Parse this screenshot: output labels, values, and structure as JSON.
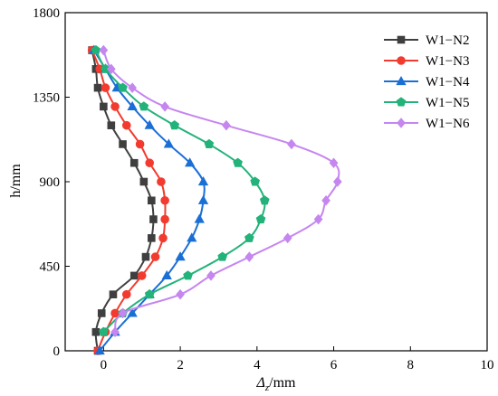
{
  "chart_data": {
    "type": "line",
    "title": "",
    "xlabel_main": "Δ",
    "xlabel_sub": "z",
    "xlabel_unit": "/mm",
    "ylabel": "h/mm",
    "xlim": [
      -1,
      10
    ],
    "ylim": [
      0,
      1800
    ],
    "xticks": [
      "0",
      "2",
      "4",
      "6",
      "8",
      "10"
    ],
    "yticks": [
      "0",
      "450",
      "900",
      "1350",
      "1800"
    ],
    "legend_position": "top-right",
    "series": [
      {
        "name": "W1−N2",
        "color": "#3f3f3f",
        "marker": "square",
        "points": [
          [
            -0.15,
            0
          ],
          [
            -0.2,
            100
          ],
          [
            -0.05,
            200
          ],
          [
            0.25,
            300
          ],
          [
            0.8,
            400
          ],
          [
            1.1,
            500
          ],
          [
            1.25,
            600
          ],
          [
            1.3,
            700
          ],
          [
            1.25,
            800
          ],
          [
            1.05,
            900
          ],
          [
            0.8,
            1000
          ],
          [
            0.5,
            1100
          ],
          [
            0.2,
            1200
          ],
          [
            0.0,
            1300
          ],
          [
            -0.15,
            1400
          ],
          [
            -0.2,
            1500
          ],
          [
            -0.3,
            1600
          ]
        ]
      },
      {
        "name": "W1−N3",
        "color": "#f23a2e",
        "marker": "circle",
        "points": [
          [
            -0.15,
            0
          ],
          [
            0.05,
            100
          ],
          [
            0.3,
            200
          ],
          [
            0.6,
            300
          ],
          [
            1.0,
            400
          ],
          [
            1.35,
            500
          ],
          [
            1.55,
            600
          ],
          [
            1.6,
            700
          ],
          [
            1.6,
            800
          ],
          [
            1.5,
            900
          ],
          [
            1.2,
            1000
          ],
          [
            0.95,
            1100
          ],
          [
            0.6,
            1200
          ],
          [
            0.3,
            1300
          ],
          [
            0.05,
            1400
          ],
          [
            -0.1,
            1500
          ],
          [
            -0.3,
            1600
          ]
        ]
      },
      {
        "name": "W1−N4",
        "color": "#1a6fd6",
        "marker": "triangle",
        "points": [
          [
            -0.1,
            0
          ],
          [
            0.3,
            100
          ],
          [
            0.75,
            200
          ],
          [
            1.2,
            300
          ],
          [
            1.65,
            400
          ],
          [
            2.0,
            500
          ],
          [
            2.3,
            600
          ],
          [
            2.5,
            700
          ],
          [
            2.6,
            800
          ],
          [
            2.6,
            900
          ],
          [
            2.25,
            1000
          ],
          [
            1.7,
            1100
          ],
          [
            1.2,
            1200
          ],
          [
            0.75,
            1300
          ],
          [
            0.35,
            1400
          ],
          [
            0.05,
            1500
          ],
          [
            -0.25,
            1600
          ]
        ]
      },
      {
        "name": "W1−N5",
        "color": "#22b27a",
        "marker": "pentagon",
        "points": [
          [
            0.0,
            100
          ],
          [
            0.5,
            200
          ],
          [
            1.2,
            300
          ],
          [
            2.2,
            400
          ],
          [
            3.1,
            500
          ],
          [
            3.8,
            600
          ],
          [
            4.1,
            700
          ],
          [
            4.2,
            800
          ],
          [
            3.95,
            900
          ],
          [
            3.5,
            1000
          ],
          [
            2.75,
            1100
          ],
          [
            1.85,
            1200
          ],
          [
            1.05,
            1300
          ],
          [
            0.5,
            1400
          ],
          [
            0.05,
            1500
          ],
          [
            -0.2,
            1600
          ]
        ]
      },
      {
        "name": "W1−N6",
        "color": "#c586f0",
        "marker": "diamond",
        "points": [
          [
            0.3,
            100
          ],
          [
            0.5,
            200
          ],
          [
            2.0,
            300
          ],
          [
            2.8,
            400
          ],
          [
            3.8,
            500
          ],
          [
            4.8,
            600
          ],
          [
            5.6,
            700
          ],
          [
            5.8,
            800
          ],
          [
            6.1,
            900
          ],
          [
            6.0,
            1000
          ],
          [
            4.9,
            1100
          ],
          [
            3.2,
            1200
          ],
          [
            1.6,
            1300
          ],
          [
            0.75,
            1400
          ],
          [
            0.2,
            1500
          ],
          [
            0.0,
            1600
          ]
        ]
      }
    ]
  }
}
